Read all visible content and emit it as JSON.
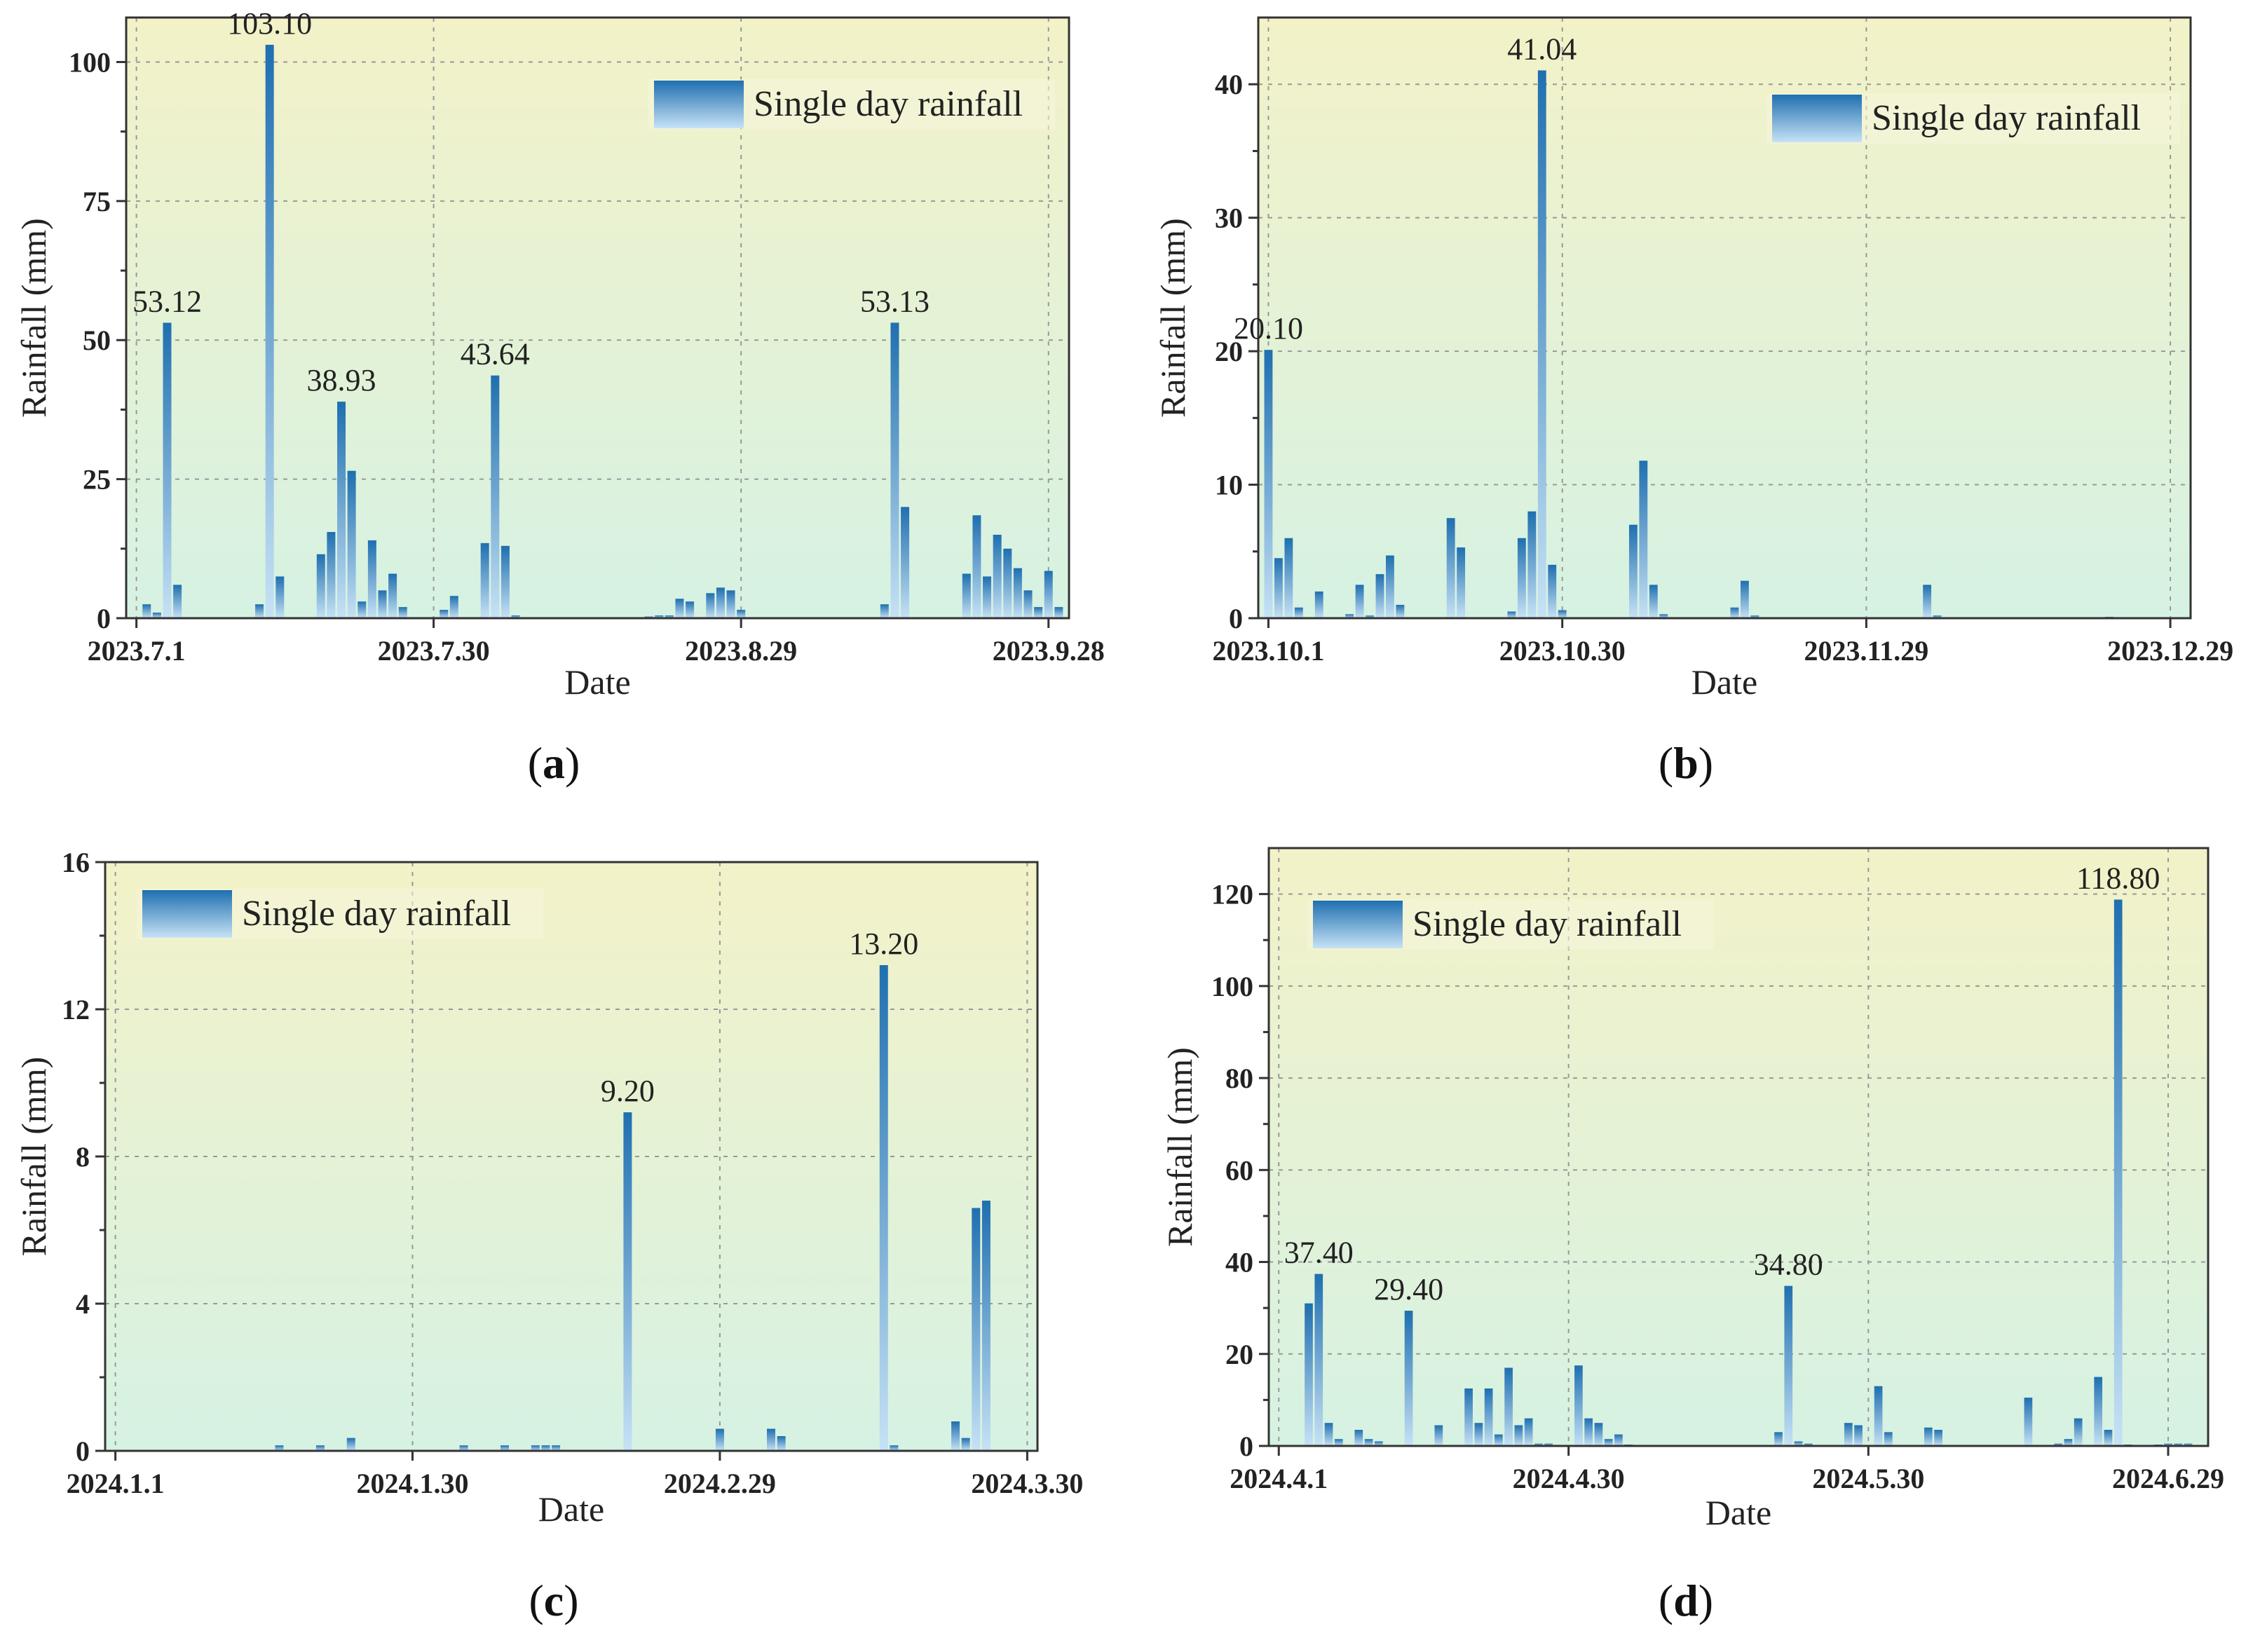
{
  "figure": {
    "panel_labels": [
      "(a)",
      "(b)",
      "(c)",
      "(d)"
    ],
    "colors": {
      "bar_top": "#1f6fb0",
      "bar_bottom": "#c6e2f5",
      "bg_top": "#f3f2c8",
      "bg_bottom": "#d6f2e3"
    }
  },
  "chart_data": [
    {
      "type": "bar",
      "panel": "(a)",
      "xlabel": "Date",
      "ylabel": "Rainfall (mm)",
      "ylim": [
        0,
        108
      ],
      "yticks": [
        0,
        25,
        50,
        75,
        100
      ],
      "xlim": [
        -1,
        91
      ],
      "xticks": [
        {
          "day": 0,
          "label": "2023.7.1"
        },
        {
          "day": 29,
          "label": "2023.7.30"
        },
        {
          "day": 59,
          "label": "2023.8.29"
        },
        {
          "day": 89,
          "label": "2023.9.28"
        }
      ],
      "grid": true,
      "legend": {
        "label": "Single day rainfall",
        "position": "top-right"
      },
      "series": [
        {
          "name": "Single day rainfall",
          "points": [
            [
              1,
              2.5
            ],
            [
              2,
              1.0
            ],
            [
              3,
              53.12
            ],
            [
              4,
              6.0
            ],
            [
              12,
              2.5
            ],
            [
              13,
              103.1
            ],
            [
              14,
              7.5
            ],
            [
              18,
              11.5
            ],
            [
              19,
              15.5
            ],
            [
              20,
              38.93
            ],
            [
              21,
              26.5
            ],
            [
              22,
              3.0
            ],
            [
              23,
              14.0
            ],
            [
              24,
              5.0
            ],
            [
              25,
              8.0
            ],
            [
              26,
              2.0
            ],
            [
              30,
              1.5
            ],
            [
              31,
              4.0
            ],
            [
              34,
              13.5
            ],
            [
              35,
              43.64
            ],
            [
              36,
              13.0
            ],
            [
              37,
              0.5
            ],
            [
              50,
              0.3
            ],
            [
              51,
              0.5
            ],
            [
              52,
              0.5
            ],
            [
              53,
              3.5
            ],
            [
              54,
              3.0
            ],
            [
              56,
              4.5
            ],
            [
              57,
              5.5
            ],
            [
              58,
              5.0
            ],
            [
              59,
              1.5
            ],
            [
              73,
              2.5
            ],
            [
              74,
              53.13
            ],
            [
              75,
              20.0
            ],
            [
              81,
              8.0
            ],
            [
              82,
              18.5
            ],
            [
              83,
              7.5
            ],
            [
              84,
              15.0
            ],
            [
              85,
              12.5
            ],
            [
              86,
              9.0
            ],
            [
              87,
              5.0
            ],
            [
              88,
              2.0
            ],
            [
              89,
              8.5
            ],
            [
              90,
              2.0
            ]
          ]
        }
      ],
      "annotations": [
        {
          "day": 3,
          "value": 53.12,
          "text": "53.12"
        },
        {
          "day": 13,
          "value": 103.1,
          "text": "103.10"
        },
        {
          "day": 20,
          "value": 38.93,
          "text": "38.93"
        },
        {
          "day": 35,
          "value": 43.64,
          "text": "43.64"
        },
        {
          "day": 74,
          "value": 53.13,
          "text": "53.13"
        }
      ]
    },
    {
      "type": "bar",
      "panel": "(b)",
      "xlabel": "Date",
      "ylabel": "Rainfall (mm)",
      "ylim": [
        0,
        45
      ],
      "yticks": [
        0,
        10,
        20,
        30,
        40
      ],
      "xlim": [
        -1,
        91
      ],
      "xticks": [
        {
          "day": 0,
          "label": "2023.10.1"
        },
        {
          "day": 29,
          "label": "2023.10.30"
        },
        {
          "day": 59,
          "label": "2023.11.29"
        },
        {
          "day": 89,
          "label": "2023.12.29"
        }
      ],
      "grid": true,
      "legend": {
        "label": "Single day rainfall",
        "position": "top-right"
      },
      "series": [
        {
          "name": "Single day rainfall",
          "points": [
            [
              0,
              20.1
            ],
            [
              1,
              4.5
            ],
            [
              2,
              6.0
            ],
            [
              3,
              0.8
            ],
            [
              5,
              2.0
            ],
            [
              8,
              0.3
            ],
            [
              9,
              2.5
            ],
            [
              10,
              0.2
            ],
            [
              11,
              3.3
            ],
            [
              12,
              4.7
            ],
            [
              13,
              1.0
            ],
            [
              18,
              7.5
            ],
            [
              19,
              5.3
            ],
            [
              24,
              0.5
            ],
            [
              25,
              6.0
            ],
            [
              26,
              8.0
            ],
            [
              27,
              41.04
            ],
            [
              28,
              4.0
            ],
            [
              29,
              0.6
            ],
            [
              36,
              7.0
            ],
            [
              37,
              11.8
            ],
            [
              38,
              2.5
            ],
            [
              39,
              0.3
            ],
            [
              46,
              0.8
            ],
            [
              47,
              2.8
            ],
            [
              48,
              0.2
            ],
            [
              65,
              2.5
            ],
            [
              66,
              0.2
            ],
            [
              83,
              0.1
            ]
          ]
        }
      ],
      "annotations": [
        {
          "day": 0,
          "value": 20.1,
          "text": "20.10"
        },
        {
          "day": 27,
          "value": 41.04,
          "text": "41.04"
        }
      ]
    },
    {
      "type": "bar",
      "panel": "(c)",
      "xlabel": "Date",
      "ylabel": "Rainfall (mm)",
      "ylim": [
        0,
        16
      ],
      "yticks": [
        0,
        4,
        8,
        12,
        16
      ],
      "xlim": [
        -1,
        90
      ],
      "xticks": [
        {
          "day": 0,
          "label": "2024.1.1"
        },
        {
          "day": 29,
          "label": "2024.1.30"
        },
        {
          "day": 59,
          "label": "2024.2.29"
        },
        {
          "day": 89,
          "label": "2024.3.30"
        }
      ],
      "grid": true,
      "legend": {
        "label": "Single day rainfall",
        "position": "top-left"
      },
      "series": [
        {
          "name": "Single day rainfall",
          "points": [
            [
              16,
              0.15
            ],
            [
              20,
              0.15
            ],
            [
              23,
              0.35
            ],
            [
              34,
              0.15
            ],
            [
              38,
              0.15
            ],
            [
              41,
              0.15
            ],
            [
              42,
              0.15
            ],
            [
              43,
              0.15
            ],
            [
              50,
              9.2
            ],
            [
              59,
              0.6
            ],
            [
              64,
              0.6
            ],
            [
              65,
              0.4
            ],
            [
              75,
              13.2
            ],
            [
              76,
              0.15
            ],
            [
              82,
              0.8
            ],
            [
              83,
              0.35
            ],
            [
              84,
              6.6
            ],
            [
              85,
              6.8
            ]
          ]
        }
      ],
      "annotations": [
        {
          "day": 50,
          "value": 9.2,
          "text": "9.20"
        },
        {
          "day": 75,
          "value": 13.2,
          "text": "13.20"
        }
      ]
    },
    {
      "type": "bar",
      "panel": "(d)",
      "xlabel": "Date",
      "ylabel": "Rainfall (mm)",
      "ylim": [
        0,
        130
      ],
      "yticks": [
        0,
        20,
        40,
        60,
        80,
        100,
        120
      ],
      "xlim": [
        -1,
        93
      ],
      "xticks": [
        {
          "day": 0,
          "label": "2024.4.1"
        },
        {
          "day": 29,
          "label": "2024.4.30"
        },
        {
          "day": 59,
          "label": "2024.5.30"
        },
        {
          "day": 89,
          "label": "2024.6.29"
        }
      ],
      "grid": true,
      "legend": {
        "label": "Single day rainfall",
        "position": "top-left"
      },
      "series": [
        {
          "name": "Single day rainfall",
          "points": [
            [
              3,
              31.0
            ],
            [
              4,
              37.4
            ],
            [
              5,
              5.0
            ],
            [
              6,
              1.5
            ],
            [
              8,
              3.5
            ],
            [
              9,
              1.5
            ],
            [
              10,
              1.0
            ],
            [
              13,
              29.4
            ],
            [
              16,
              4.5
            ],
            [
              19,
              12.5
            ],
            [
              20,
              5.0
            ],
            [
              21,
              12.5
            ],
            [
              22,
              2.5
            ],
            [
              23,
              17.0
            ],
            [
              24,
              4.5
            ],
            [
              25,
              6.0
            ],
            [
              26,
              0.5
            ],
            [
              27,
              0.5
            ],
            [
              30,
              17.5
            ],
            [
              31,
              6.0
            ],
            [
              32,
              5.0
            ],
            [
              33,
              1.5
            ],
            [
              34,
              2.5
            ],
            [
              35,
              0.3
            ],
            [
              50,
              3.0
            ],
            [
              51,
              34.8
            ],
            [
              52,
              1.0
            ],
            [
              53,
              0.5
            ],
            [
              57,
              5.0
            ],
            [
              58,
              4.5
            ],
            [
              60,
              13.0
            ],
            [
              61,
              3.0
            ],
            [
              65,
              4.0
            ],
            [
              66,
              3.5
            ],
            [
              75,
              10.5
            ],
            [
              78,
              0.5
            ],
            [
              79,
              1.5
            ],
            [
              80,
              6.0
            ],
            [
              82,
              15.0
            ],
            [
              83,
              3.5
            ],
            [
              84,
              118.8
            ],
            [
              85,
              0.3
            ],
            [
              88,
              0.3
            ],
            [
              89,
              0.5
            ],
            [
              90,
              0.5
            ],
            [
              91,
              0.5
            ]
          ]
        }
      ],
      "annotations": [
        {
          "day": 4,
          "value": 37.4,
          "text": "37.40"
        },
        {
          "day": 13,
          "value": 29.4,
          "text": "29.40"
        },
        {
          "day": 51,
          "value": 34.8,
          "text": "34.80"
        },
        {
          "day": 84,
          "value": 118.8,
          "text": "118.80"
        }
      ]
    }
  ]
}
